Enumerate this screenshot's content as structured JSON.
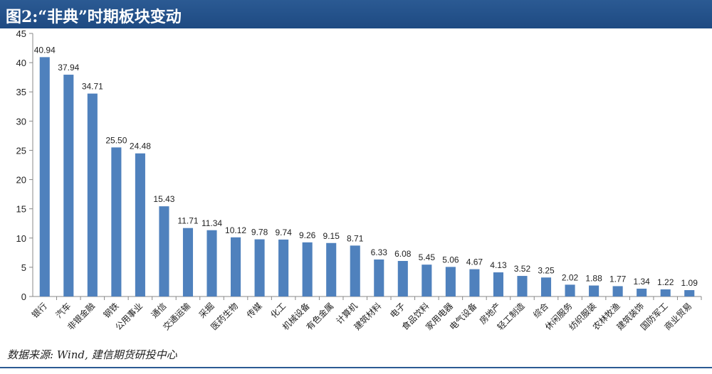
{
  "header": {
    "title": "图2:“非典”时期板块变动"
  },
  "footer": {
    "source": "数据来源: Wind, 建信期货研投中心"
  },
  "colors": {
    "bar": "#4f81bd",
    "header_bg": "#1e4a82"
  },
  "chart_data": {
    "type": "bar",
    "title": "图2:“非典”时期板块变动",
    "categories": [
      "银行",
      "汽车",
      "非银金融",
      "钢铁",
      "公用事业",
      "通信",
      "交通运输",
      "采掘",
      "医药生物",
      "传媒",
      "化工",
      "机械设备",
      "有色金属",
      "计算机",
      "建筑材料",
      "电子",
      "食品饮料",
      "家用电器",
      "电气设备",
      "房地产",
      "轻工制造",
      "综合",
      "休闲服务",
      "纺织服装",
      "农林牧渔",
      "建筑装饰",
      "国防军工",
      "商业贸易"
    ],
    "values": [
      40.94,
      37.94,
      34.71,
      25.5,
      24.48,
      15.43,
      11.71,
      11.34,
      10.12,
      9.78,
      9.74,
      9.26,
      9.15,
      8.71,
      6.33,
      6.08,
      5.45,
      5.06,
      4.67,
      4.13,
      3.52,
      3.25,
      2.02,
      1.88,
      1.77,
      1.34,
      1.22,
      1.09
    ],
    "value_labels": [
      "40.94",
      "37.94",
      "34.71",
      "25.50",
      "24.48",
      "15.43",
      "11.71",
      "11.34",
      "10.12",
      "9.78",
      "9.74",
      "9.26",
      "9.15",
      "8.71",
      "6.33",
      "6.08",
      "5.45",
      "5.06",
      "4.67",
      "4.13",
      "3.52",
      "3.25",
      "2.02",
      "1.88",
      "1.77",
      "1.34",
      "1.22",
      "1.09"
    ],
    "ylim": [
      0,
      45
    ],
    "yticks": [
      "0",
      "5",
      "10",
      "15",
      "20",
      "25",
      "30",
      "35",
      "40",
      "45"
    ],
    "grid": false,
    "legend": "none"
  }
}
